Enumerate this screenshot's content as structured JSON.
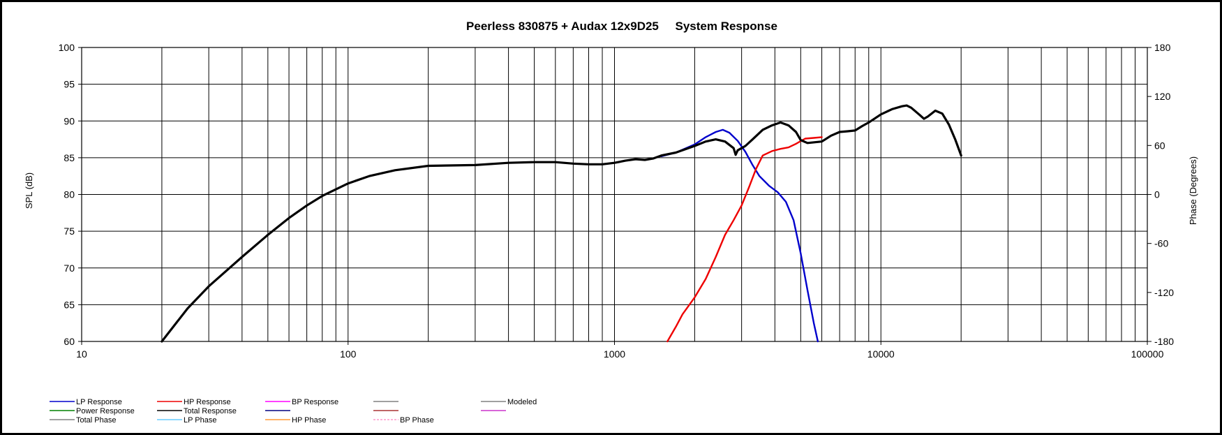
{
  "chart_data": {
    "type": "line",
    "title": "Peerless 830875 + Audax 12x9D25     System Response",
    "xlabel": "",
    "ylabel": "SPL (dB)",
    "y2label": "Phase (Degrees)",
    "x_scale": "log",
    "xlim": [
      10,
      100000
    ],
    "ylim": [
      60,
      100
    ],
    "y2lim": [
      -180,
      180
    ],
    "grid": true,
    "x_tick_labels": [
      "10",
      "100",
      "1000",
      "10000",
      "100000"
    ],
    "y_ticks": [
      60,
      65,
      70,
      75,
      80,
      85,
      90,
      95,
      100
    ],
    "y2_ticks": [
      -180,
      -120,
      -60,
      0,
      60,
      120,
      180
    ],
    "legend_position": "bottom",
    "series": [
      {
        "name": "LP Response",
        "color": "#0000cc",
        "points": [
          [
            1500,
            85.2
          ],
          [
            1700,
            85.7
          ],
          [
            2000,
            86.8
          ],
          [
            2200,
            87.8
          ],
          [
            2400,
            88.5
          ],
          [
            2550,
            88.8
          ],
          [
            2700,
            88.4
          ],
          [
            2900,
            87.3
          ],
          [
            3100,
            85.8
          ],
          [
            3300,
            84.0
          ],
          [
            3500,
            82.5
          ],
          [
            3800,
            81.2
          ],
          [
            4100,
            80.3
          ],
          [
            4400,
            79.0
          ],
          [
            4700,
            76.5
          ],
          [
            5000,
            72.0
          ],
          [
            5300,
            67.0
          ],
          [
            5600,
            62.5
          ],
          [
            5800,
            60.0
          ]
        ]
      },
      {
        "name": "HP Response",
        "color": "#ee0000",
        "points": [
          [
            1580,
            60.0
          ],
          [
            1700,
            62.0
          ],
          [
            1800,
            63.7
          ],
          [
            2000,
            66.0
          ],
          [
            2200,
            68.5
          ],
          [
            2400,
            71.5
          ],
          [
            2600,
            74.5
          ],
          [
            2800,
            76.5
          ],
          [
            3000,
            78.5
          ],
          [
            3200,
            81.0
          ],
          [
            3400,
            83.5
          ],
          [
            3600,
            85.3
          ],
          [
            3900,
            85.9
          ],
          [
            4200,
            86.2
          ],
          [
            4500,
            86.4
          ],
          [
            4800,
            86.9
          ],
          [
            5200,
            87.6
          ],
          [
            5600,
            87.7
          ],
          [
            6000,
            87.8
          ]
        ]
      },
      {
        "name": "Total Response",
        "color": "#000000",
        "points": [
          [
            20,
            60.0
          ],
          [
            25,
            64.5
          ],
          [
            30,
            67.5
          ],
          [
            40,
            71.5
          ],
          [
            50,
            74.5
          ],
          [
            60,
            76.8
          ],
          [
            70,
            78.5
          ],
          [
            80,
            79.8
          ],
          [
            100,
            81.5
          ],
          [
            120,
            82.5
          ],
          [
            150,
            83.3
          ],
          [
            200,
            83.9
          ],
          [
            300,
            84.0
          ],
          [
            400,
            84.3
          ],
          [
            500,
            84.4
          ],
          [
            600,
            84.4
          ],
          [
            700,
            84.2
          ],
          [
            800,
            84.1
          ],
          [
            900,
            84.1
          ],
          [
            1000,
            84.3
          ],
          [
            1100,
            84.6
          ],
          [
            1200,
            84.8
          ],
          [
            1300,
            84.7
          ],
          [
            1400,
            84.9
          ],
          [
            1500,
            85.3
          ],
          [
            1700,
            85.7
          ],
          [
            2000,
            86.6
          ],
          [
            2200,
            87.2
          ],
          [
            2400,
            87.5
          ],
          [
            2600,
            87.2
          ],
          [
            2800,
            86.3
          ],
          [
            2850,
            85.4
          ],
          [
            2900,
            86.0
          ],
          [
            3100,
            86.6
          ],
          [
            3300,
            87.5
          ],
          [
            3600,
            88.8
          ],
          [
            3900,
            89.4
          ],
          [
            4200,
            89.8
          ],
          [
            4500,
            89.4
          ],
          [
            4800,
            88.5
          ],
          [
            5000,
            87.4
          ],
          [
            5300,
            87.0
          ],
          [
            6000,
            87.2
          ],
          [
            6500,
            88.0
          ],
          [
            7000,
            88.5
          ],
          [
            7500,
            88.6
          ],
          [
            8000,
            88.7
          ],
          [
            8500,
            89.3
          ],
          [
            9000,
            89.8
          ],
          [
            10000,
            90.9
          ],
          [
            11000,
            91.6
          ],
          [
            12000,
            92.0
          ],
          [
            12500,
            92.1
          ],
          [
            13000,
            91.8
          ],
          [
            14000,
            90.8
          ],
          [
            14500,
            90.3
          ],
          [
            15000,
            90.6
          ],
          [
            16000,
            91.4
          ],
          [
            17000,
            91.0
          ],
          [
            18000,
            89.5
          ],
          [
            19000,
            87.5
          ],
          [
            20000,
            85.3
          ]
        ]
      },
      {
        "name": "BP Response",
        "color": "#ff00ff",
        "points": []
      },
      {
        "name": "Power Response",
        "color": "#008000",
        "points": []
      },
      {
        "name": "Total Phase",
        "color": "#808080",
        "points": []
      },
      {
        "name": "LP Phase",
        "color": "#66ccff",
        "points": []
      },
      {
        "name": "HP Phase",
        "color": "#ff9933",
        "points": []
      },
      {
        "name": "BP Phase",
        "color": "#ff99cc",
        "points": []
      },
      {
        "name": "Modeled",
        "color": "#808080",
        "points": []
      }
    ],
    "legend": [
      {
        "label": "LP Response",
        "color": "#0000cc"
      },
      {
        "label": "HP Response",
        "color": "#ee0000"
      },
      {
        "label": "BP Response",
        "color": "#ff00ff"
      },
      {
        "label": "",
        "color": "#808080"
      },
      {
        "label": "Modeled",
        "color": "#808080"
      },
      {
        "label": "Power Response",
        "color": "#008000"
      },
      {
        "label": "Total Response",
        "color": "#000000"
      },
      {
        "label": "",
        "color": "#000080"
      },
      {
        "label": "",
        "color": "#aa3333"
      },
      {
        "label": "",
        "color": "#cc33cc"
      },
      {
        "label": "Total Phase",
        "color": "#808080"
      },
      {
        "label": "LP Phase",
        "color": "#66ccff"
      },
      {
        "label": "HP Phase",
        "color": "#ff9933"
      },
      {
        "label": "BP Phase",
        "color": "#ff99cc",
        "dashed": true
      }
    ]
  }
}
